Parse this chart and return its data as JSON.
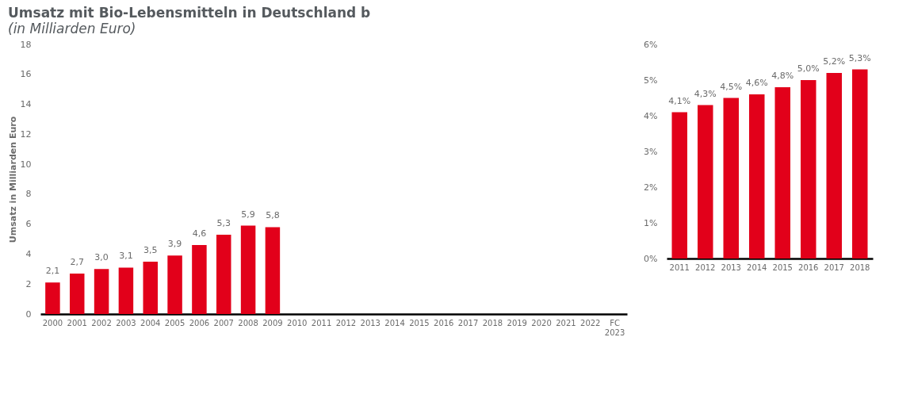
{
  "chart_data": [
    {
      "type": "bar",
      "title": "Umsatz mit Bio-Lebensmitteln in Deutschland b",
      "subtitle": "(in Milliarden Euro)",
      "ylabel": "Umsatz in Milliarden Euro",
      "categories": [
        "2000",
        "2001",
        "2002",
        "2003",
        "2004",
        "2005",
        "2006",
        "2007",
        "2008",
        "2009",
        "2010",
        "2011",
        "2012",
        "2013",
        "2014",
        "2015",
        "2016",
        "2017",
        "2018",
        "2019",
        "2020",
        "2021",
        "2022",
        "FC 2023"
      ],
      "values": [
        2.1,
        2.7,
        3.0,
        3.1,
        3.5,
        3.9,
        4.6,
        5.3,
        5.9,
        5.8,
        null,
        null,
        null,
        null,
        null,
        null,
        null,
        null,
        null,
        null,
        null,
        null,
        null,
        null
      ],
      "value_labels": [
        "2,1",
        "2,7",
        "3,0",
        "3,1",
        "3,5",
        "3,9",
        "4,6",
        "5,3",
        "5,9",
        "5,8",
        null,
        null,
        null,
        null,
        null,
        null,
        null,
        null,
        null,
        null,
        null,
        null,
        null,
        null
      ],
      "colors": [
        "#e2001a",
        "#e2001a",
        "#e2001a",
        "#e2001a",
        "#e2001a",
        "#e2001a",
        "#e2001a",
        "#e2001a",
        "#e2001a",
        "#e2001a",
        "#e2001a",
        "#e2001a",
        "#e2001a",
        "#e2001a",
        "#e2001a",
        "#e2001a",
        "#e2001a",
        "#e2001a",
        "#e2001a",
        "#e2001a",
        "#e2001a",
        "#e2001a",
        "#e2001a",
        "#8b0f12"
      ],
      "ylim": [
        0,
        18
      ],
      "yticks": [
        0,
        2,
        4,
        6,
        8,
        10,
        12,
        14,
        16,
        18
      ],
      "grid": false
    },
    {
      "type": "bar",
      "categories": [
        "2011",
        "2012",
        "2013",
        "2014",
        "2015",
        "2016",
        "2017",
        "2018"
      ],
      "values": [
        4.1,
        4.3,
        4.5,
        4.6,
        4.8,
        5.0,
        5.2,
        5.3
      ],
      "value_labels": [
        "4,1%",
        "4,3%",
        "4,5%",
        "4,6%",
        "4,8%",
        "5,0%",
        "5,2%",
        "5,3%"
      ],
      "color": "#e2001a",
      "ylim": [
        0,
        6
      ],
      "yticks": [
        {
          "value": 0,
          "label": "0%"
        },
        {
          "value": 1,
          "label": "1%"
        },
        {
          "value": 2,
          "label": "2%"
        },
        {
          "value": 3,
          "label": "3%"
        },
        {
          "value": 4,
          "label": "4%"
        },
        {
          "value": 5,
          "label": "5%"
        },
        {
          "value": 6,
          "label": "6%"
        }
      ],
      "grid": false
    }
  ]
}
